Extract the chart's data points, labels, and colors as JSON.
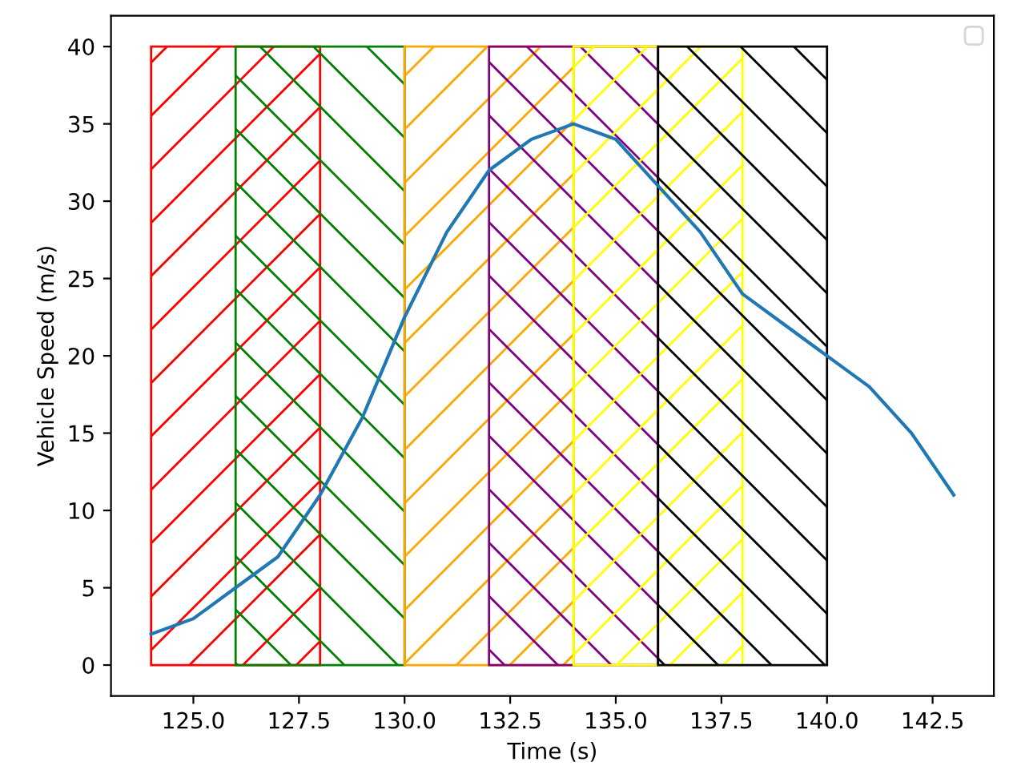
{
  "chart_data": {
    "type": "line",
    "xlabel": "Time (s)",
    "ylabel": "Vehicle Speed (m/s)",
    "x": [
      124,
      125,
      126,
      127,
      128,
      129,
      130,
      131,
      132,
      133,
      134,
      135,
      136,
      137,
      138,
      139,
      140,
      141,
      142,
      143
    ],
    "series": [
      {
        "color": "#1f77b4",
        "values": [
          2,
          3,
          5,
          7,
          11,
          16,
          22.5,
          28,
          32,
          34,
          35,
          34,
          31,
          28,
          24,
          22,
          20,
          18,
          15,
          11
        ]
      }
    ],
    "xlim": [
      123.05,
      143.95
    ],
    "ylim": [
      -2,
      42
    ],
    "xticks": [
      {
        "value": 125,
        "label": "125.0"
      },
      {
        "value": 127.5,
        "label": "127.5"
      },
      {
        "value": 130,
        "label": "130.0"
      },
      {
        "value": 132.5,
        "label": "132.5"
      },
      {
        "value": 135,
        "label": "135.0"
      },
      {
        "value": 137.5,
        "label": "137.5"
      },
      {
        "value": 140,
        "label": "140.0"
      },
      {
        "value": 142.5,
        "label": "142.5"
      }
    ],
    "yticks": [
      0,
      5,
      10,
      15,
      20,
      25,
      30,
      35,
      40
    ],
    "bands": [
      {
        "axis": "x",
        "from": 124,
        "to": 128,
        "color": "#ff0000"
      },
      {
        "axis": "x",
        "from": 126,
        "to": 130,
        "color": "#008000"
      },
      {
        "axis": "x",
        "from": 130,
        "to": 134,
        "color": "#ffa500"
      },
      {
        "axis": "x",
        "from": 132,
        "to": 136,
        "color": "#800080"
      },
      {
        "axis": "x",
        "from": 134,
        "to": 138,
        "color": "#ffff00"
      },
      {
        "axis": "x",
        "from": 136,
        "to": 140,
        "color": "#000000"
      }
    ],
    "grid": false,
    "marker": "none",
    "line_style": "solid"
  }
}
